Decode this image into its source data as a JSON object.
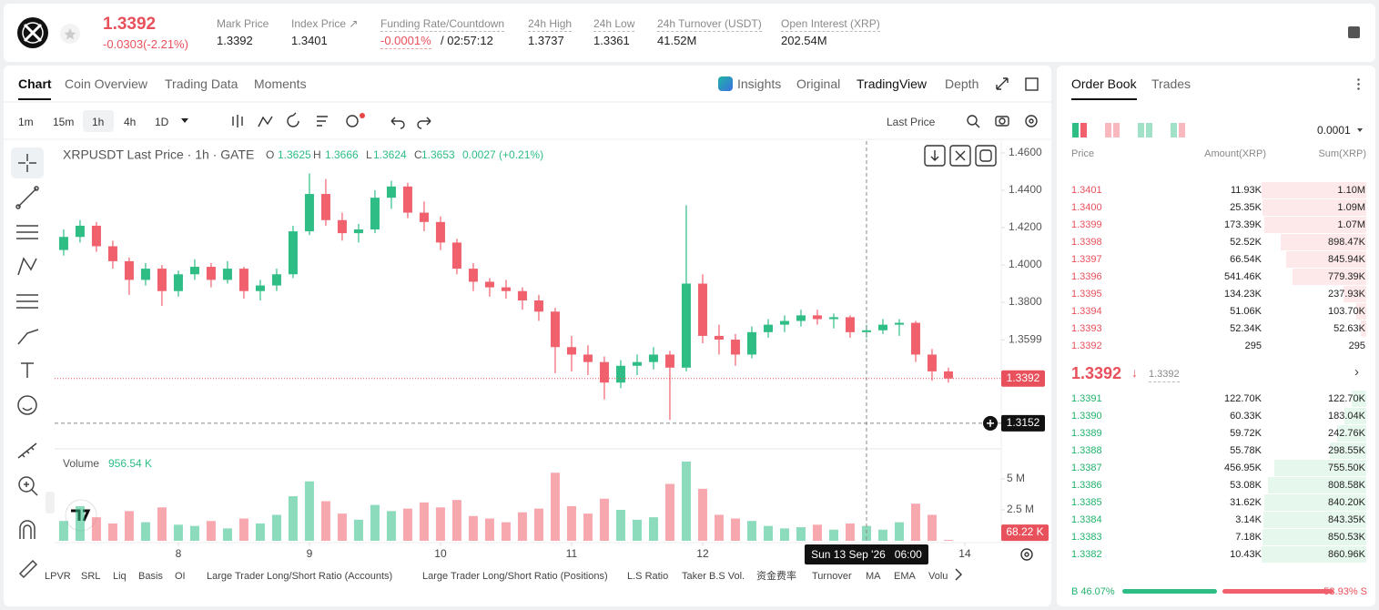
{
  "header": {
    "price": "1.3392",
    "change": "-0.0303(-2.21%)",
    "stats": [
      {
        "label": "Mark Price",
        "value": "1.3392"
      },
      {
        "label": "Index Price ↗",
        "value": "1.3401"
      },
      {
        "label": "Funding Rate/Countdown",
        "value": "-0.0001%",
        "value2": "/ 02:57:12"
      },
      {
        "label": "24h High",
        "value": "1.3737"
      },
      {
        "label": "24h Low",
        "value": "1.3361"
      },
      {
        "label": "24h Turnover (USDT)",
        "value": "41.52M"
      },
      {
        "label": "Open Interest (XRP)",
        "value": "202.54M"
      }
    ]
  },
  "tabs": [
    "Chart",
    "Coin Overview",
    "Trading Data",
    "Moments"
  ],
  "views": [
    "Insights",
    "Original",
    "TradingView",
    "Depth"
  ],
  "timeframes": [
    "1m",
    "15m",
    "1h",
    "4h",
    "1D"
  ],
  "price_type": "Last Price",
  "indicators": [
    "LPVR",
    "SRL",
    "Liq",
    "Basis",
    "OI",
    "Large Trader Long/Short Ratio (Accounts)",
    "Large Trader Long/Short Ratio (Positions)",
    "L.S Ratio",
    "Taker B.S Vol.",
    "资金费率",
    "Turnover",
    "MA",
    "EMA",
    "Volu"
  ],
  "chart_data": {
    "type": "candlestick",
    "legend": {
      "title": "XRPUSDT Last Price · 1h · GATE",
      "o": "1.3625",
      "h": "1.3666",
      "l": "1.3624",
      "c": "1.3653",
      "change": "0.0027 (+0.21%)",
      "volume_title": "Volume",
      "volume": "956.54 K"
    },
    "up_color": "#2ebd85",
    "down_color": "#f0616d",
    "x": [
      7.125,
      7.25,
      7.375,
      7.5,
      7.625,
      7.75,
      7.875,
      8,
      8.125,
      8.25,
      8.375,
      8.5,
      8.625,
      8.75,
      8.875,
      9,
      9.125,
      9.25,
      9.375,
      9.5,
      9.625,
      9.75,
      9.875,
      10,
      10.125,
      10.25,
      10.375,
      10.5,
      10.625,
      10.75,
      10.875,
      11,
      11.125,
      11.25,
      11.375,
      11.5,
      11.625,
      11.75,
      11.875,
      12,
      12.125,
      12.25,
      12.375,
      12.5,
      12.625,
      12.75,
      12.875,
      13,
      13.125,
      13.25,
      13.375,
      13.5,
      13.625,
      13.75,
      13.875
    ],
    "open": [
      1.408,
      1.415,
      1.421,
      1.41,
      1.402,
      1.392,
      1.398,
      1.386,
      1.395,
      1.399,
      1.392,
      1.398,
      1.386,
      1.389,
      1.395,
      1.418,
      1.438,
      1.424,
      1.417,
      1.419,
      1.436,
      1.442,
      1.428,
      1.423,
      1.412,
      1.398,
      1.391,
      1.388,
      1.386,
      1.381,
      1.375,
      1.356,
      1.352,
      1.348,
      1.337,
      1.346,
      1.348,
      1.352,
      1.345,
      1.39,
      1.362,
      1.36,
      1.352,
      1.364,
      1.368,
      1.37,
      1.373,
      1.371,
      1.372,
      1.364,
      1.365,
      1.368,
      1.369,
      1.352,
      1.343
    ],
    "high": [
      1.419,
      1.424,
      1.423,
      1.413,
      1.404,
      1.401,
      1.4,
      1.397,
      1.403,
      1.401,
      1.402,
      1.399,
      1.392,
      1.398,
      1.421,
      1.449,
      1.446,
      1.428,
      1.422,
      1.44,
      1.445,
      1.444,
      1.434,
      1.426,
      1.414,
      1.401,
      1.393,
      1.392,
      1.388,
      1.384,
      1.377,
      1.362,
      1.357,
      1.351,
      1.349,
      1.352,
      1.356,
      1.354,
      1.432,
      1.395,
      1.368,
      1.363,
      1.367,
      1.371,
      1.373,
      1.376,
      1.376,
      1.374,
      1.373,
      1.368,
      1.371,
      1.371,
      1.37,
      1.355,
      1.345
    ],
    "low": [
      1.405,
      1.412,
      1.407,
      1.398,
      1.384,
      1.389,
      1.378,
      1.383,
      1.392,
      1.388,
      1.39,
      1.382,
      1.381,
      1.386,
      1.393,
      1.416,
      1.421,
      1.413,
      1.412,
      1.417,
      1.43,
      1.425,
      1.418,
      1.408,
      1.395,
      1.386,
      1.383,
      1.382,
      1.376,
      1.37,
      1.342,
      1.343,
      1.341,
      1.328,
      1.334,
      1.341,
      1.344,
      1.317,
      1.343,
      1.358,
      1.352,
      1.346,
      1.35,
      1.361,
      1.364,
      1.367,
      1.368,
      1.366,
      1.361,
      1.361,
      1.363,
      1.362,
      1.348,
      1.338,
      1.337
    ],
    "close": [
      1.415,
      1.421,
      1.41,
      1.402,
      1.392,
      1.398,
      1.386,
      1.395,
      1.399,
      1.392,
      1.398,
      1.386,
      1.389,
      1.395,
      1.418,
      1.438,
      1.424,
      1.417,
      1.419,
      1.436,
      1.442,
      1.428,
      1.423,
      1.412,
      1.398,
      1.391,
      1.388,
      1.386,
      1.381,
      1.375,
      1.356,
      1.352,
      1.348,
      1.337,
      1.346,
      1.348,
      1.352,
      1.345,
      1.39,
      1.362,
      1.36,
      1.352,
      1.364,
      1.368,
      1.37,
      1.373,
      1.371,
      1.372,
      1.364,
      1.365,
      1.368,
      1.369,
      1.352,
      1.343,
      1.3392
    ],
    "volume": [
      1600000,
      2800000,
      1900000,
      1400000,
      2400000,
      1500000,
      2700000,
      1300000,
      1200000,
      1600000,
      1000000,
      1800000,
      1400000,
      2100000,
      3600000,
      4800000,
      3200000,
      2200000,
      1700000,
      2900000,
      2400000,
      2600000,
      3100000,
      2700000,
      3300000,
      2000000,
      1800000,
      1500000,
      2300000,
      2600000,
      5500000,
      2800000,
      2200000,
      3400000,
      2500000,
      1700000,
      1900000,
      4600000,
      6400000,
      4200000,
      2100000,
      1800000,
      1600000,
      1200000,
      1000000,
      1100000,
      1300000,
      900000,
      1400000,
      1200000,
      900000,
      1500000,
      3000000,
      2100000,
      68220
    ],
    "last_volume_label": "68.22 K",
    "xlim": [
      7.056,
      14.278
    ],
    "xticks": [
      8,
      9,
      10,
      11,
      12,
      14
    ],
    "ylim": [
      1.302,
      1.4663
    ],
    "yticks": [
      {
        "value": 1.46,
        "label": "1.4600"
      },
      {
        "value": 1.44,
        "label": "1.4400"
      },
      {
        "value": 1.42,
        "label": "1.4200"
      },
      {
        "value": 1.4,
        "label": "1.4000"
      },
      {
        "value": 1.38,
        "label": "1.3800"
      },
      {
        "value": 1.3599,
        "label": "1.3599"
      }
    ],
    "vlim": [
      0,
      7280000
    ],
    "vticks": [
      {
        "value": 5000000,
        "label": "5 M"
      },
      {
        "value": 2500000,
        "label": "2.5 M"
      }
    ],
    "last_price": {
      "value": 1.3392,
      "label": "1.3392"
    },
    "crosshair": {
      "x": 13.25,
      "price": 1.3152,
      "price_label": "1.3152",
      "time_label": "Sun 13 Sep '26   06:00"
    },
    "grid": false
  },
  "order_book": {
    "tabs": [
      "Order Book",
      "Trades"
    ],
    "precision": "0.0001",
    "columns": [
      "Price",
      "Amount(XRP)",
      "Sum(XRP)"
    ],
    "asks": [
      {
        "price": "1.3401",
        "amount": "11.93K",
        "sum": "1.10M"
      },
      {
        "price": "1.3400",
        "amount": "25.35K",
        "sum": "1.09M"
      },
      {
        "price": "1.3399",
        "amount": "173.39K",
        "sum": "1.07M"
      },
      {
        "price": "1.3398",
        "amount": "52.52K",
        "sum": "898.47K"
      },
      {
        "price": "1.3397",
        "amount": "66.54K",
        "sum": "845.94K"
      },
      {
        "price": "1.3396",
        "amount": "541.46K",
        "sum": "779.39K"
      },
      {
        "price": "1.3395",
        "amount": "134.23K",
        "sum": "237.93K"
      },
      {
        "price": "1.3394",
        "amount": "51.06K",
        "sum": "103.70K"
      },
      {
        "price": "1.3393",
        "amount": "52.34K",
        "sum": "52.63K"
      },
      {
        "price": "1.3392",
        "amount": "295",
        "sum": "295"
      }
    ],
    "mid": "1.3392",
    "mid_mark": "1.3392",
    "bids": [
      {
        "price": "1.3391",
        "amount": "122.70K",
        "sum": "122.70K"
      },
      {
        "price": "1.3390",
        "amount": "60.33K",
        "sum": "183.04K"
      },
      {
        "price": "1.3389",
        "amount": "59.72K",
        "sum": "242.76K"
      },
      {
        "price": "1.3388",
        "amount": "55.78K",
        "sum": "298.55K"
      },
      {
        "price": "1.3387",
        "amount": "456.95K",
        "sum": "755.50K"
      },
      {
        "price": "1.3386",
        "amount": "53.08K",
        "sum": "808.58K"
      },
      {
        "price": "1.3385",
        "amount": "31.62K",
        "sum": "840.20K"
      },
      {
        "price": "1.3384",
        "amount": "3.14K",
        "sum": "843.35K"
      },
      {
        "price": "1.3383",
        "amount": "7.18K",
        "sum": "850.53K"
      },
      {
        "price": "1.3382",
        "amount": "10.43K",
        "sum": "860.96K"
      }
    ],
    "buy_pct": 46.07,
    "buy_label": "B 46.07%",
    "sell_label": "53.93% S"
  }
}
